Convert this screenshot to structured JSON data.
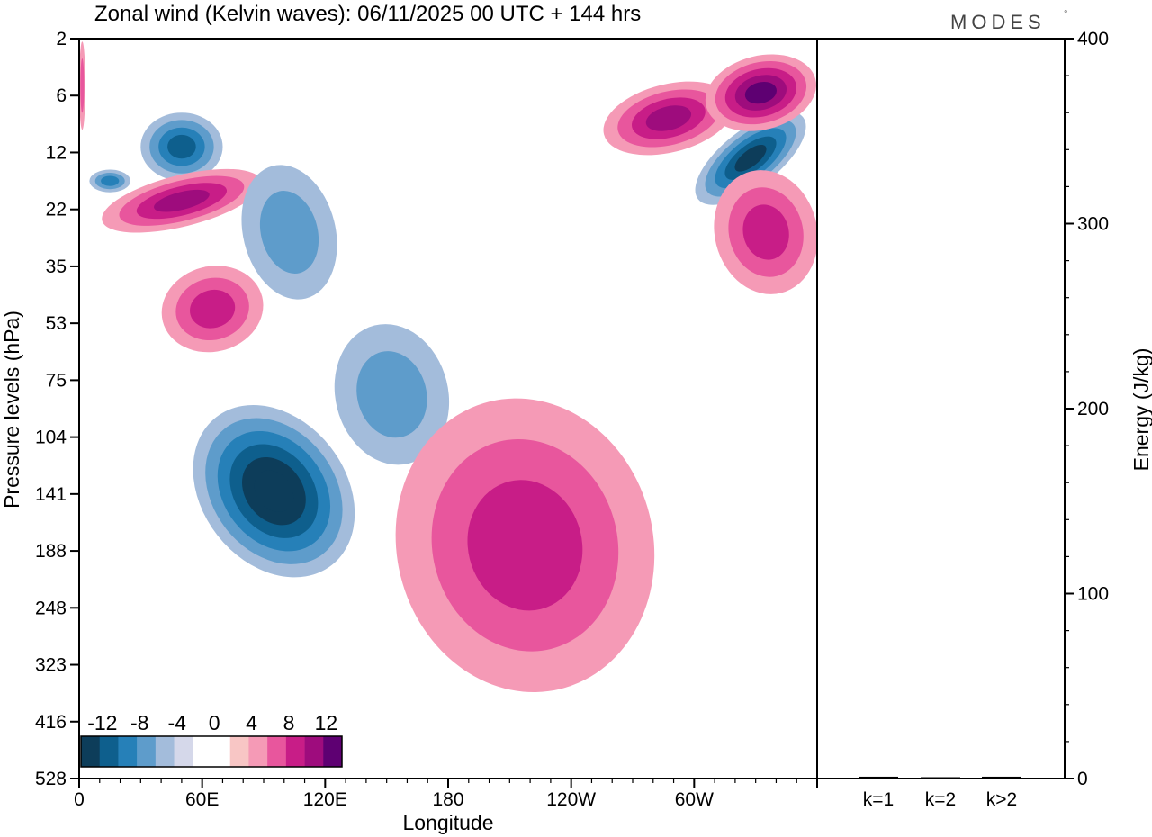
{
  "chart_data": [
    {
      "type": "heatmap",
      "title": "Zonal wind (Kelvin waves):  06/11/2025  00 UTC  + 144 hrs",
      "xlabel": "Longitude",
      "ylabel": "Pressure levels (hPa)",
      "x_ticks": [
        "0",
        "60E",
        "120E",
        "180",
        "120W",
        "60W"
      ],
      "x_tick_values_deg": [
        0,
        60,
        120,
        180,
        240,
        300
      ],
      "xlim_deg": [
        0,
        360
      ],
      "y_ticks": [
        "2",
        "6",
        "12",
        "22",
        "35",
        "53",
        "75",
        "104",
        "141",
        "188",
        "248",
        "323",
        "416",
        "528"
      ],
      "colorbar": {
        "labels": [
          "-12",
          "-8",
          "-4",
          "0",
          "4",
          "8",
          "12"
        ],
        "colors": [
          "#0d3d5a",
          "#0e5f8d",
          "#2680b8",
          "#5e9ccb",
          "#a3bcdb",
          "#d5d8ea",
          "#ffffff",
          "#ffffff",
          "#f8c6c5",
          "#f59ab6",
          "#e8569d",
          "#c81d87",
          "#9e0c7d",
          "#5e0072"
        ]
      },
      "regions": [
        {
          "lon": [
            0,
            3
          ],
          "level": [
            0.05,
            1.6
          ],
          "sign": "positive",
          "magnitude": 3
        },
        {
          "lon": [
            5,
            25
          ],
          "level": [
            2.3,
            2.7
          ],
          "sign": "negative",
          "magnitude": 5
        },
        {
          "lon": [
            30,
            70
          ],
          "level": [
            1.3,
            2.5
          ],
          "sign": "negative",
          "magnitude": 8
        },
        {
          "lon": [
            10,
            90
          ],
          "level": [
            2.4,
            3.3
          ],
          "sign": "positive",
          "magnitude": 7
        },
        {
          "lon": [
            80,
            125
          ],
          "level": [
            2.2,
            4.6
          ],
          "sign": "negative",
          "magnitude": 4
        },
        {
          "lon": [
            40,
            90
          ],
          "level": [
            4.0,
            5.5
          ],
          "sign": "positive",
          "magnitude": 6
        },
        {
          "lon": [
            60,
            130
          ],
          "level": [
            6.3,
            9.6
          ],
          "sign": "negative",
          "magnitude": 12
        },
        {
          "lon": [
            125,
            180
          ],
          "level": [
            5.0,
            7.5
          ],
          "sign": "negative",
          "magnitude": 3
        },
        {
          "lon": [
            155,
            280
          ],
          "level": [
            6.3,
            11.5
          ],
          "sign": "positive",
          "magnitude": 5
        },
        {
          "lon": [
            255,
            320
          ],
          "level": [
            0.8,
            2.0
          ],
          "sign": "positive",
          "magnitude": 7
        },
        {
          "lon": [
            295,
            360
          ],
          "level": [
            1.6,
            2.6
          ],
          "sign": "negative",
          "magnitude": 9
        },
        {
          "lon": [
            305,
            360
          ],
          "level": [
            0.3,
            1.6
          ],
          "sign": "positive",
          "magnitude": 9
        },
        {
          "lon": [
            310,
            360
          ],
          "level": [
            2.3,
            4.5
          ],
          "sign": "positive",
          "magnitude": 5
        }
      ]
    },
    {
      "type": "bar",
      "categories": [
        "k=1",
        "k=2",
        "k>2"
      ],
      "values": [
        1,
        0.5,
        1
      ],
      "ylabel": "Energy (J/kg)",
      "ylim": [
        0,
        400
      ],
      "y_ticks": [
        "0",
        "100",
        "200",
        "300",
        "400"
      ]
    }
  ],
  "logo": {
    "text": "MODES",
    "mark": "°"
  }
}
